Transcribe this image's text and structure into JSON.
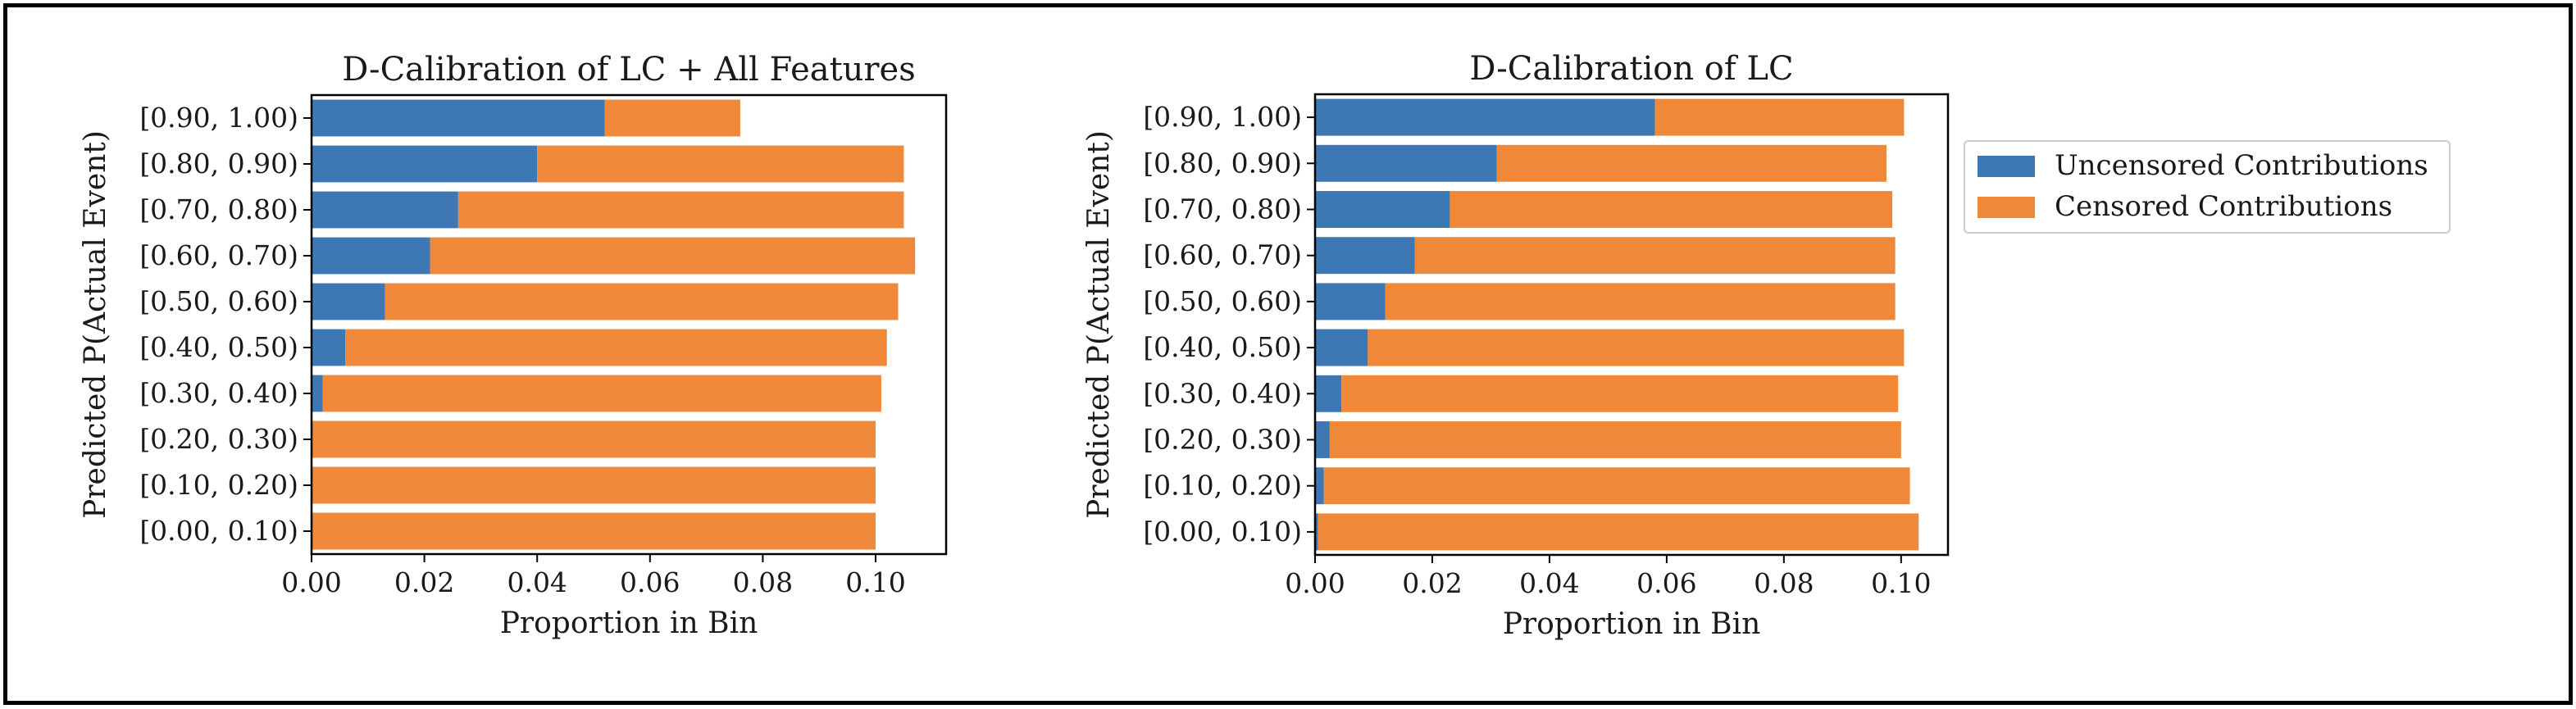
{
  "chart_data": [
    {
      "type": "bar",
      "orientation": "horizontal",
      "stacked": true,
      "title": "D-Calibration of LC + All Features",
      "xlabel": "Proportion in Bin",
      "ylabel": "Predicted P(Actual Event)",
      "xlim": [
        0,
        0.1125
      ],
      "xticks": [
        "0.00",
        "0.02",
        "0.04",
        "0.06",
        "0.08",
        "0.10"
      ],
      "categories": [
        "[0.00, 0.10)",
        "[0.10, 0.20)",
        "[0.20, 0.30)",
        "[0.30, 0.40)",
        "[0.40, 0.50)",
        "[0.50, 0.60)",
        "[0.60, 0.70)",
        "[0.70, 0.80)",
        "[0.80, 0.90)",
        "[0.90, 1.00)"
      ],
      "series": [
        {
          "name": "Uncensored Contributions",
          "values": [
            0.0,
            0.0,
            0.0,
            0.002,
            0.006,
            0.013,
            0.021,
            0.026,
            0.04,
            0.052
          ]
        },
        {
          "name": "Censored Contributions",
          "values": [
            0.1,
            0.1,
            0.1,
            0.099,
            0.096,
            0.091,
            0.086,
            0.079,
            0.065,
            0.024
          ]
        }
      ],
      "grid": false,
      "legend": "none"
    },
    {
      "type": "bar",
      "orientation": "horizontal",
      "stacked": true,
      "title": "D-Calibration of LC",
      "xlabel": "Proportion in Bin",
      "ylabel": "Predicted P(Actual Event)",
      "xlim": [
        0,
        0.108
      ],
      "xticks": [
        "0.00",
        "0.02",
        "0.04",
        "0.06",
        "0.08",
        "0.10"
      ],
      "categories": [
        "[0.00, 0.10)",
        "[0.10, 0.20)",
        "[0.20, 0.30)",
        "[0.30, 0.40)",
        "[0.40, 0.50)",
        "[0.50, 0.60)",
        "[0.60, 0.70)",
        "[0.70, 0.80)",
        "[0.80, 0.90)",
        "[0.90, 1.00)"
      ],
      "series": [
        {
          "name": "Uncensored Contributions",
          "values": [
            0.0005,
            0.0015,
            0.0025,
            0.0045,
            0.009,
            0.012,
            0.017,
            0.023,
            0.031,
            0.058
          ]
        },
        {
          "name": "Censored Contributions",
          "values": [
            0.1025,
            0.1,
            0.0975,
            0.095,
            0.0915,
            0.087,
            0.082,
            0.0755,
            0.0665,
            0.0425
          ]
        }
      ],
      "grid": false,
      "legend": "outside-right"
    }
  ],
  "colors": {
    "uncensored": "#3d78b4",
    "censored": "#f0883a"
  },
  "legend": {
    "entries": [
      "Uncensored Contributions",
      "Censored Contributions"
    ]
  }
}
